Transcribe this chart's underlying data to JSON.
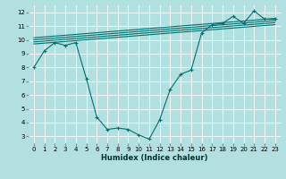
{
  "background_color": "#b2dfdf",
  "grid_color": "#ffffff",
  "line_color": "#007070",
  "xlabel": "Humidex (Indice chaleur)",
  "xlim": [
    -0.5,
    23.5
  ],
  "ylim": [
    2.5,
    12.5
  ],
  "yticks": [
    3,
    4,
    5,
    6,
    7,
    8,
    9,
    10,
    11,
    12
  ],
  "xticks": [
    0,
    1,
    2,
    3,
    4,
    5,
    6,
    7,
    8,
    9,
    10,
    11,
    12,
    13,
    14,
    15,
    16,
    17,
    18,
    19,
    20,
    21,
    22,
    23
  ],
  "curve_x": [
    0,
    1,
    2,
    3,
    4,
    5,
    6,
    7,
    8,
    9,
    10,
    11,
    12,
    13,
    14,
    15,
    16,
    17,
    18,
    19,
    20,
    21,
    22,
    23
  ],
  "curve_y": [
    8.0,
    9.2,
    9.8,
    9.6,
    9.8,
    7.2,
    4.4,
    3.5,
    3.6,
    3.5,
    3.1,
    2.8,
    4.2,
    6.4,
    7.5,
    7.8,
    10.5,
    11.1,
    11.2,
    11.7,
    11.2,
    12.1,
    11.5,
    11.5
  ],
  "lines": [
    {
      "x": [
        0,
        23
      ],
      "y": [
        9.7,
        11.1
      ]
    },
    {
      "x": [
        0,
        23
      ],
      "y": [
        9.85,
        11.25
      ]
    },
    {
      "x": [
        0,
        23
      ],
      "y": [
        10.0,
        11.4
      ]
    },
    {
      "x": [
        0,
        23
      ],
      "y": [
        10.15,
        11.55
      ]
    }
  ],
  "xlabel_fontsize": 6,
  "tick_fontsize": 5,
  "linewidth": 0.8,
  "markersize": 2.5
}
